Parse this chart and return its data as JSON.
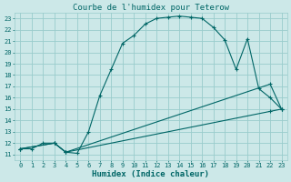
{
  "title": "Courbe de l'humidex pour Teterow",
  "xlabel": "Humidex (Indice chaleur)",
  "bg_color": "#cce8e8",
  "grid_color": "#99cccc",
  "line_color": "#006666",
  "xlim": [
    -0.5,
    23.5
  ],
  "ylim": [
    10.5,
    23.5
  ],
  "xticks": [
    0,
    1,
    2,
    3,
    4,
    5,
    6,
    7,
    8,
    9,
    10,
    11,
    12,
    13,
    14,
    15,
    16,
    17,
    18,
    19,
    20,
    21,
    22,
    23
  ],
  "yticks": [
    11,
    12,
    13,
    14,
    15,
    16,
    17,
    18,
    19,
    20,
    21,
    22,
    23
  ],
  "curve1_x": [
    0,
    1,
    2,
    3,
    4,
    5,
    6,
    7,
    8,
    9,
    10,
    11,
    12,
    13,
    14,
    15,
    16,
    17,
    18,
    19,
    20,
    21,
    22,
    23
  ],
  "curve1_y": [
    11.5,
    11.5,
    12.0,
    12.0,
    11.2,
    11.1,
    13.0,
    16.2,
    18.5,
    20.8,
    21.5,
    22.5,
    23.0,
    23.1,
    23.2,
    23.1,
    23.0,
    22.2,
    21.1,
    18.5,
    21.2,
    16.8,
    16.0,
    15.0
  ],
  "curve2_x": [
    0,
    3,
    4,
    22,
    23
  ],
  "curve2_y": [
    11.5,
    12.0,
    11.2,
    17.2,
    15.0
  ],
  "curve3_x": [
    0,
    3,
    4,
    22,
    23
  ],
  "curve3_y": [
    11.5,
    12.0,
    11.2,
    14.8,
    15.0
  ],
  "title_fontsize": 6.5,
  "xlabel_fontsize": 6.5,
  "tick_fontsize": 5.0
}
